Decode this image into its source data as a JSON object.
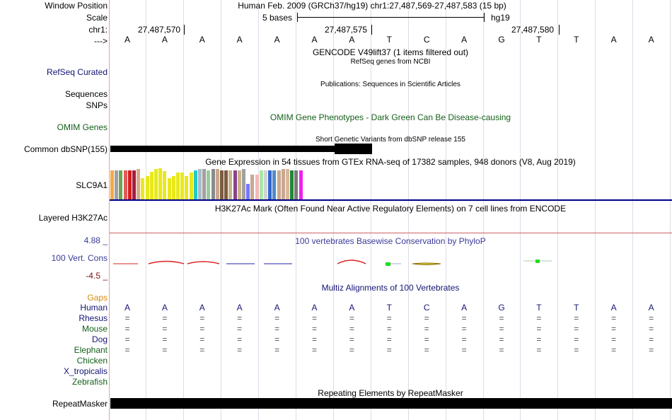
{
  "header": {
    "window_position_label": "Window Position",
    "scale_label": "Scale",
    "chr_label": "chr1:",
    "arrow_label": "--->",
    "position_text": "Human Feb. 2009 (GRCh37/hg19)   chr1:27,487,569-27,487,583 (15 bp)",
    "scale_text": "5 bases",
    "assembly": "hg19",
    "coord_ticks": [
      "27,487,570",
      "27,487,575",
      "27,487,580"
    ]
  },
  "bases": [
    "A",
    "A",
    "A",
    "A",
    "A",
    "A",
    "A",
    "T",
    "C",
    "A",
    "G",
    "T",
    "T",
    "A",
    "A"
  ],
  "track_labels": {
    "refseq": "RefSeq Curated",
    "sequences": "Sequences",
    "snps": "SNPs",
    "omim": "OMIM Genes",
    "dbsnp": "Common dbSNP(155)",
    "gtex_gene": "SLC9A1",
    "h3k27ac": "Layered H3K27Ac",
    "cons_max": "4.88 _",
    "cons_label": "100 Vert. Cons",
    "cons_min": "-4.5 _",
    "gaps": "Gaps",
    "species": [
      "Human",
      "Rhesus",
      "Mouse",
      "Dog",
      "Elephant",
      "Chicken",
      "X_tropicalis",
      "Zebrafish"
    ],
    "repeatmasker": "RepeatMasker"
  },
  "track_titles": {
    "gencode": "GENCODE V49lift37 (1 items filtered out)",
    "refseq": "RefSeq genes from NCBI",
    "publications": "Publications: Sequences in Scientific Articles",
    "omim": "OMIM Gene Phenotypes - Dark Green Can Be Disease-causing",
    "dbsnp": "Short Genetic Variants from dbSNP release 155",
    "gtex": "Gene Expression in 54 tissues from GTEx RNA-seq of 17382 samples, 948 donors (V8, Aug 2019)",
    "h3k27ac": "H3K27Ac Mark (Often Found Near Active Regulatory Elements) on 7 cell lines from ENCODE",
    "phylop": "100 vertebrates Basewise Conservation by PhyloP",
    "multiz": "Multiz Alignments of 100 Vertebrates",
    "repeatmasker": "Repeating Elements by RepeatMasker"
  },
  "alignment_symbol": "=",
  "gtex_bars": [
    {
      "color": "#f5a94b",
      "level": 0.93
    },
    {
      "color": "#a0a0a0",
      "level": 0.93
    },
    {
      "color": "#6aa84f",
      "level": 0.93
    },
    {
      "color": "#e25a5a",
      "level": 0.93
    },
    {
      "color": "#d61c1c",
      "level": 0.93
    },
    {
      "color": "#a61c3c",
      "level": 0.93
    },
    {
      "color": "#d9a88a",
      "level": 0.98
    },
    {
      "color": "#e8e81c",
      "level": 0.69
    },
    {
      "color": "#e8e81c",
      "level": 0.76
    },
    {
      "color": "#e8e81c",
      "level": 0.88
    },
    {
      "color": "#e8e81c",
      "level": 0.98
    },
    {
      "color": "#e8e81c",
      "level": 1.0
    },
    {
      "color": "#e8e81c",
      "level": 0.9
    },
    {
      "color": "#e8e81c",
      "level": 0.69
    },
    {
      "color": "#e8e81c",
      "level": 0.76
    },
    {
      "color": "#e8e81c",
      "level": 0.86
    },
    {
      "color": "#e8e81c",
      "level": 0.86
    },
    {
      "color": "#e8e81c",
      "level": 0.76
    },
    {
      "color": "#e8e81c",
      "level": 0.86
    },
    {
      "color": "#22c9c9",
      "level": 0.93
    },
    {
      "color": "#aabbcc",
      "level": 0.98
    },
    {
      "color": "#a0a0a0",
      "level": 0.98
    },
    {
      "color": "#9acb9a",
      "level": 0.93
    },
    {
      "color": "#8a8a8a",
      "level": 0.98
    },
    {
      "color": "#c8a890",
      "level": 0.98
    },
    {
      "color": "#7a5c40",
      "level": 0.93
    },
    {
      "color": "#7a5c40",
      "level": 0.93
    },
    {
      "color": "#c8b48c",
      "level": 0.93
    },
    {
      "color": "#884488",
      "level": 0.93
    },
    {
      "color": "#c8b48c",
      "level": 0.93
    },
    {
      "color": "#a0a0a0",
      "level": 0.98
    },
    {
      "color": "#7777ff",
      "level": 0.51
    },
    {
      "color": "#c8a890",
      "level": 0.79
    },
    {
      "color": "#f5b8b8",
      "level": 0.79
    },
    {
      "color": "#a8e8a8",
      "level": 0.93
    },
    {
      "color": "#d3d3d3",
      "level": 0.93
    },
    {
      "color": "#3366cc",
      "level": 0.93
    },
    {
      "color": "#5588cc",
      "level": 0.93
    },
    {
      "color": "#c8a890",
      "level": 0.93
    },
    {
      "color": "#c8a890",
      "level": 0.98
    },
    {
      "color": "#d8b8a0",
      "level": 0.98
    },
    {
      "color": "#228833",
      "level": 0.93
    },
    {
      "color": "#7a7a7a",
      "level": 0.93
    },
    {
      "color": "#ee22ee",
      "level": 0.93
    }
  ],
  "colors": {
    "grid": "#dcdce8",
    "separator": "#000088",
    "cons_red": "#dd2222",
    "cons_blue": "#2222aa",
    "cons_green": "#22dd22"
  }
}
